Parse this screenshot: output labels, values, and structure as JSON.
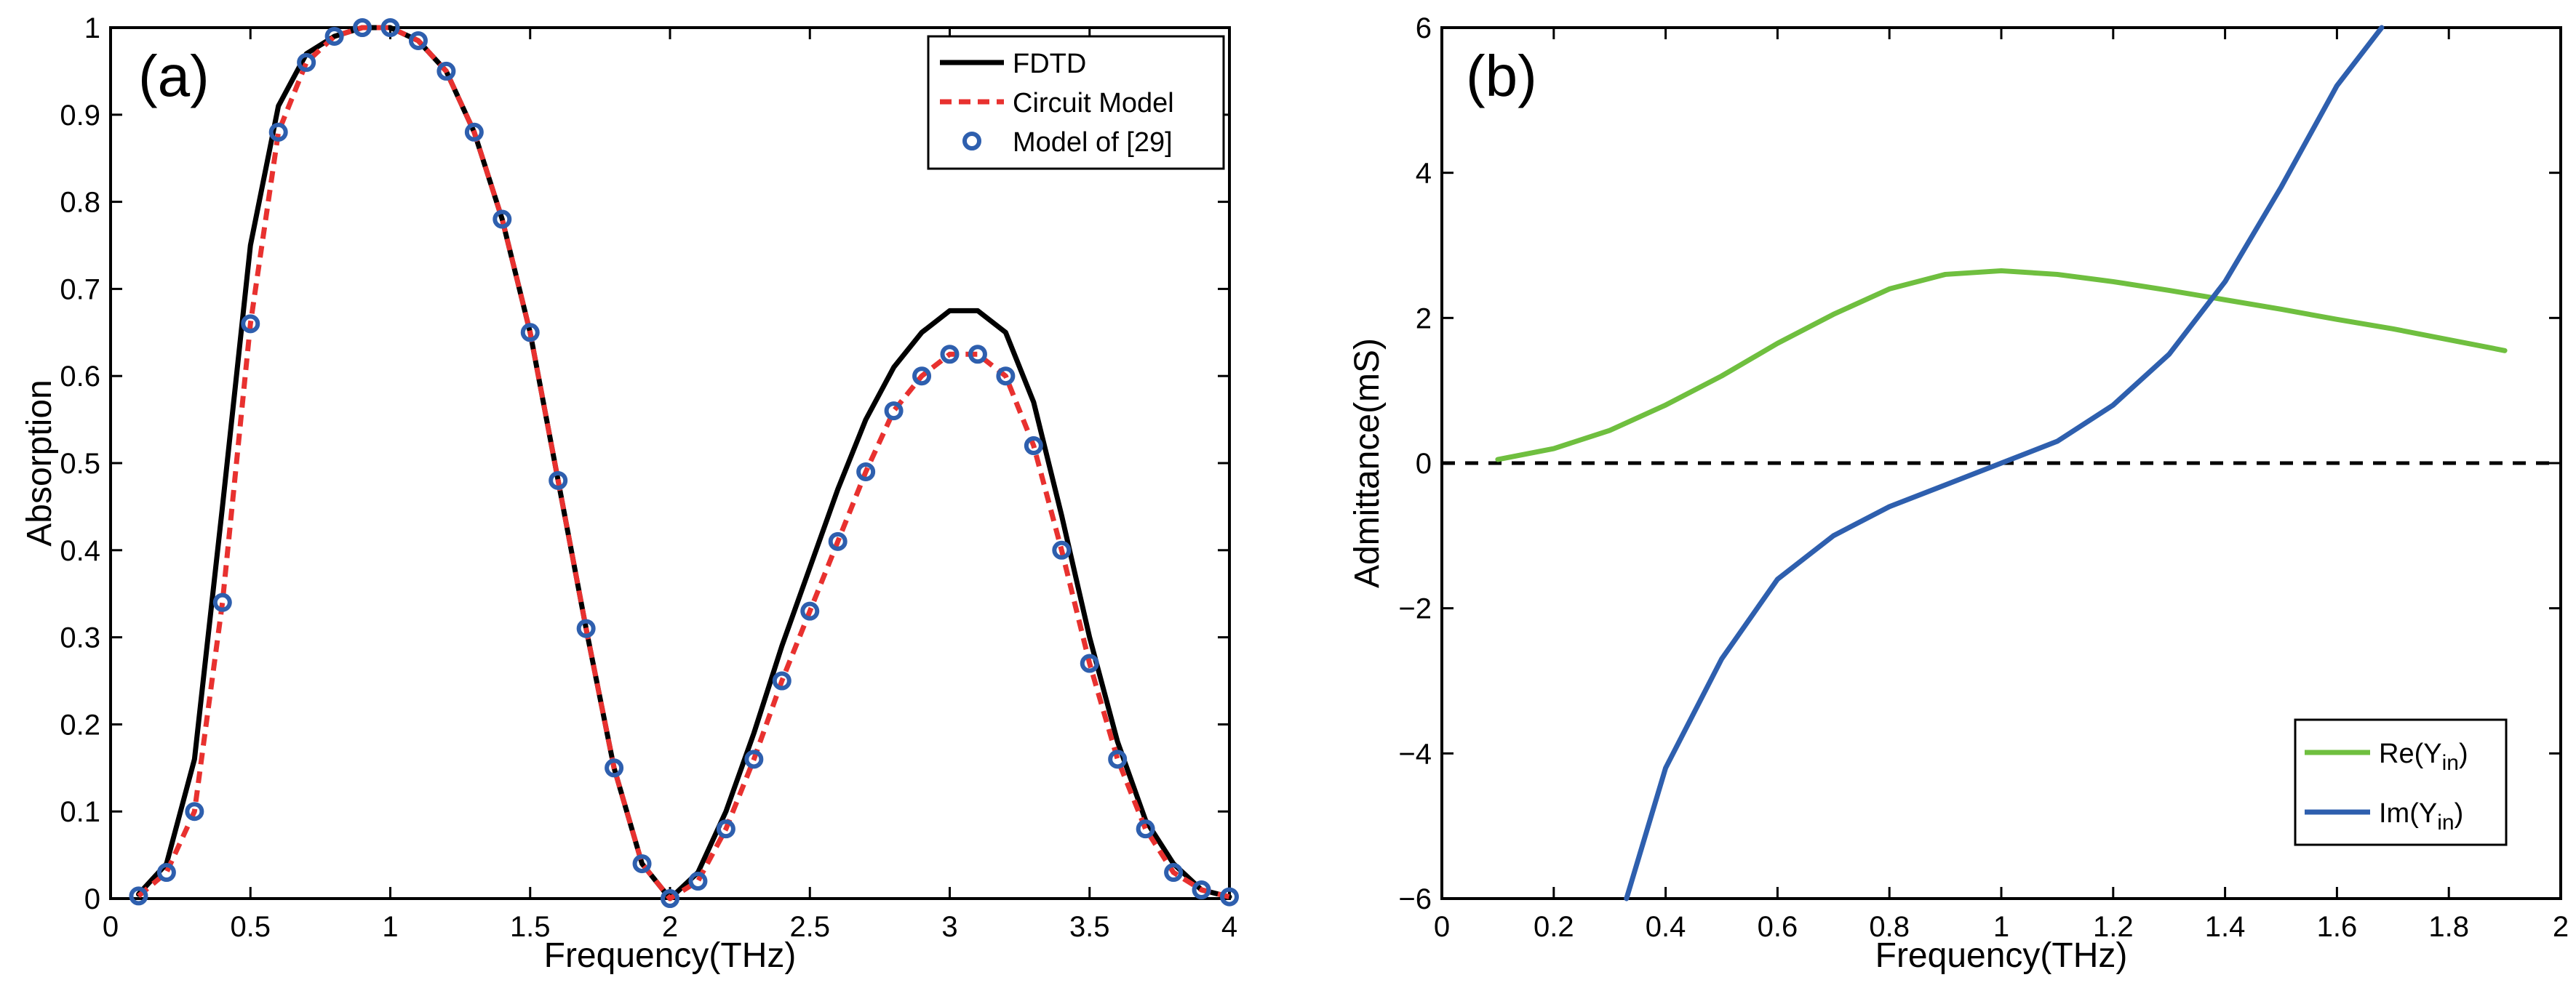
{
  "chart_data": [
    {
      "id": "a",
      "type": "line",
      "panel_label": "(a)",
      "xlabel": "Frequency(THz)",
      "ylabel": "Absorption",
      "xlim": [
        0,
        4
      ],
      "ylim": [
        0,
        1
      ],
      "xticks": [
        0,
        0.5,
        1,
        1.5,
        2,
        2.5,
        3,
        3.5,
        4
      ],
      "xtick_labels": [
        "0",
        "0.5",
        "1",
        "1.5",
        "2",
        "2.5",
        "3",
        "3.5",
        "4"
      ],
      "yticks": [
        0,
        0.1,
        0.2,
        0.3,
        0.4,
        0.5,
        0.6,
        0.7,
        0.8,
        0.9,
        1
      ],
      "ytick_labels": [
        "0",
        "0.1",
        "0.2",
        "0.3",
        "0.4",
        "0.5",
        "0.6",
        "0.7",
        "0.8",
        "0.9",
        "1"
      ],
      "legend_position": "top-right",
      "series": [
        {
          "name": "FDTD",
          "style": "solid",
          "color": "#000000",
          "x": [
            0.1,
            0.2,
            0.3,
            0.4,
            0.5,
            0.6,
            0.7,
            0.8,
            0.9,
            1.0,
            1.1,
            1.2,
            1.3,
            1.4,
            1.5,
            1.6,
            1.7,
            1.8,
            1.9,
            2.0,
            2.1,
            2.2,
            2.3,
            2.4,
            2.5,
            2.6,
            2.7,
            2.8,
            2.9,
            3.0,
            3.1,
            3.2,
            3.3,
            3.4,
            3.5,
            3.6,
            3.7,
            3.8,
            3.9,
            4.0
          ],
          "y": [
            0.005,
            0.04,
            0.16,
            0.45,
            0.75,
            0.91,
            0.97,
            0.99,
            1.0,
            1.0,
            0.985,
            0.95,
            0.88,
            0.78,
            0.65,
            0.48,
            0.31,
            0.15,
            0.04,
            0.0,
            0.03,
            0.1,
            0.19,
            0.29,
            0.38,
            0.47,
            0.55,
            0.61,
            0.65,
            0.675,
            0.675,
            0.65,
            0.57,
            0.44,
            0.3,
            0.18,
            0.09,
            0.04,
            0.01,
            0.002
          ]
        },
        {
          "name": "Circuit Model",
          "style": "dashed",
          "color": "#e8312f",
          "x": [
            0.1,
            0.2,
            0.3,
            0.4,
            0.5,
            0.6,
            0.7,
            0.8,
            0.9,
            1.0,
            1.1,
            1.2,
            1.3,
            1.4,
            1.5,
            1.6,
            1.7,
            1.8,
            1.9,
            2.0,
            2.1,
            2.2,
            2.3,
            2.4,
            2.5,
            2.6,
            2.7,
            2.8,
            2.9,
            3.0,
            3.1,
            3.2,
            3.3,
            3.4,
            3.5,
            3.6,
            3.7,
            3.8,
            3.9,
            4.0
          ],
          "y": [
            0.003,
            0.03,
            0.1,
            0.34,
            0.66,
            0.88,
            0.96,
            0.99,
            1.0,
            1.0,
            0.985,
            0.95,
            0.88,
            0.78,
            0.65,
            0.48,
            0.31,
            0.15,
            0.04,
            0.0,
            0.02,
            0.08,
            0.16,
            0.25,
            0.33,
            0.41,
            0.49,
            0.56,
            0.6,
            0.625,
            0.625,
            0.6,
            0.52,
            0.4,
            0.27,
            0.16,
            0.08,
            0.03,
            0.01,
            0.002
          ]
        },
        {
          "name": "Model of [29]",
          "style": "markers",
          "color": "#2e5fae",
          "x": [
            0.1,
            0.2,
            0.3,
            0.4,
            0.5,
            0.6,
            0.7,
            0.8,
            0.9,
            1.0,
            1.1,
            1.2,
            1.3,
            1.4,
            1.5,
            1.6,
            1.7,
            1.8,
            1.9,
            2.0,
            2.1,
            2.2,
            2.3,
            2.4,
            2.5,
            2.6,
            2.7,
            2.8,
            2.9,
            3.0,
            3.1,
            3.2,
            3.3,
            3.4,
            3.5,
            3.6,
            3.7,
            3.8,
            3.9,
            4.0
          ],
          "y": [
            0.003,
            0.03,
            0.1,
            0.34,
            0.66,
            0.88,
            0.96,
            0.99,
            1.0,
            1.0,
            0.985,
            0.95,
            0.88,
            0.78,
            0.65,
            0.48,
            0.31,
            0.15,
            0.04,
            0.0,
            0.02,
            0.08,
            0.16,
            0.25,
            0.33,
            0.41,
            0.49,
            0.56,
            0.6,
            0.625,
            0.625,
            0.6,
            0.52,
            0.4,
            0.27,
            0.16,
            0.08,
            0.03,
            0.01,
            0.002
          ]
        }
      ]
    },
    {
      "id": "b",
      "type": "line",
      "panel_label": "(b)",
      "xlabel": "Frequency(THz)",
      "ylabel": "Admittance(mS)",
      "xlim": [
        0,
        2
      ],
      "ylim": [
        -6,
        6
      ],
      "xticks": [
        0,
        0.2,
        0.4,
        0.6,
        0.8,
        1,
        1.2,
        1.4,
        1.6,
        1.8,
        2
      ],
      "xtick_labels": [
        "0",
        "0.2",
        "0.4",
        "0.6",
        "0.8",
        "1",
        "1.2",
        "1.4",
        "1.6",
        "1.8",
        "2"
      ],
      "yticks": [
        -6,
        -4,
        -2,
        0,
        2,
        4,
        6
      ],
      "ytick_labels": [
        "−6",
        "−4",
        "−2",
        "0",
        "2",
        "4",
        "6"
      ],
      "reference_line": {
        "y": 0,
        "style": "dashed",
        "color": "#000000"
      },
      "legend_position": "bottom-right",
      "series": [
        {
          "name": "Re(Y",
          "subscript": "in",
          "suffix": ")",
          "style": "solid",
          "color": "#6fbf3f",
          "x": [
            0.1,
            0.2,
            0.3,
            0.4,
            0.5,
            0.6,
            0.7,
            0.8,
            0.9,
            1.0,
            1.1,
            1.2,
            1.3,
            1.4,
            1.5,
            1.6,
            1.7,
            1.8,
            1.9
          ],
          "y": [
            0.05,
            0.2,
            0.45,
            0.8,
            1.2,
            1.65,
            2.05,
            2.4,
            2.6,
            2.65,
            2.6,
            2.5,
            2.38,
            2.25,
            2.12,
            1.98,
            1.85,
            1.7,
            1.55
          ]
        },
        {
          "name": "Im(Y",
          "subscript": "in",
          "suffix": ")",
          "style": "solid",
          "color": "#2e5fae",
          "x": [
            0.33,
            0.4,
            0.5,
            0.6,
            0.7,
            0.8,
            0.9,
            1.0,
            1.1,
            1.2,
            1.3,
            1.4,
            1.5,
            1.6,
            1.68
          ],
          "y": [
            -6.0,
            -4.2,
            -2.7,
            -1.6,
            -1.0,
            -0.6,
            -0.3,
            0.0,
            0.3,
            0.8,
            1.5,
            2.5,
            3.8,
            5.2,
            6.0
          ]
        }
      ]
    }
  ]
}
